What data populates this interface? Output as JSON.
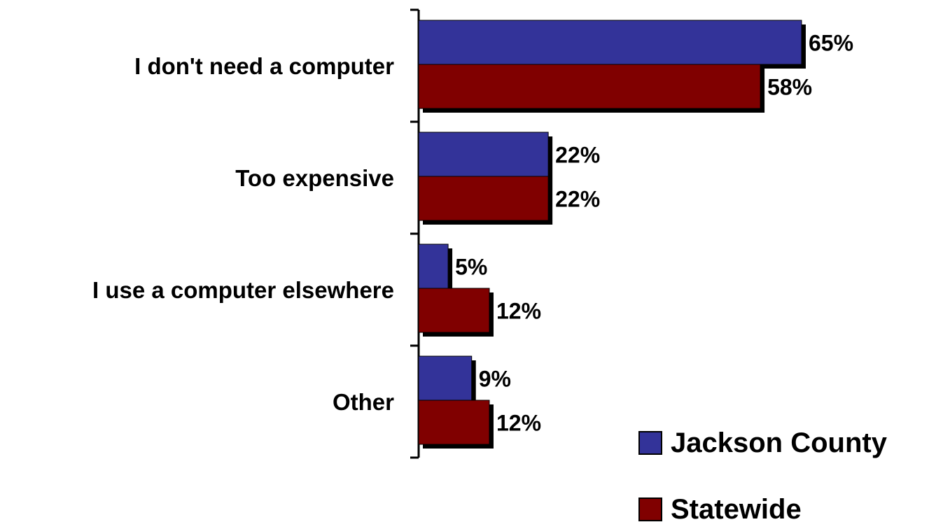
{
  "chart_data": {
    "type": "bar",
    "orientation": "horizontal",
    "categories": [
      "I don't need a computer",
      "Too expensive",
      "I use a computer elsewhere",
      "Other"
    ],
    "series": [
      {
        "name": "Jackson County",
        "values": [
          65,
          22,
          5,
          9
        ],
        "labels": [
          "65%",
          "22%",
          "5%",
          "9%"
        ],
        "color": "#333399"
      },
      {
        "name": "Statewide",
        "values": [
          58,
          22,
          12,
          12
        ],
        "labels": [
          "58%",
          "22%",
          "12%",
          "12%"
        ],
        "color": "#800000"
      }
    ],
    "unit": "%",
    "xlim": [
      0,
      65
    ],
    "grid": false,
    "legend_position": "bottom-right"
  }
}
